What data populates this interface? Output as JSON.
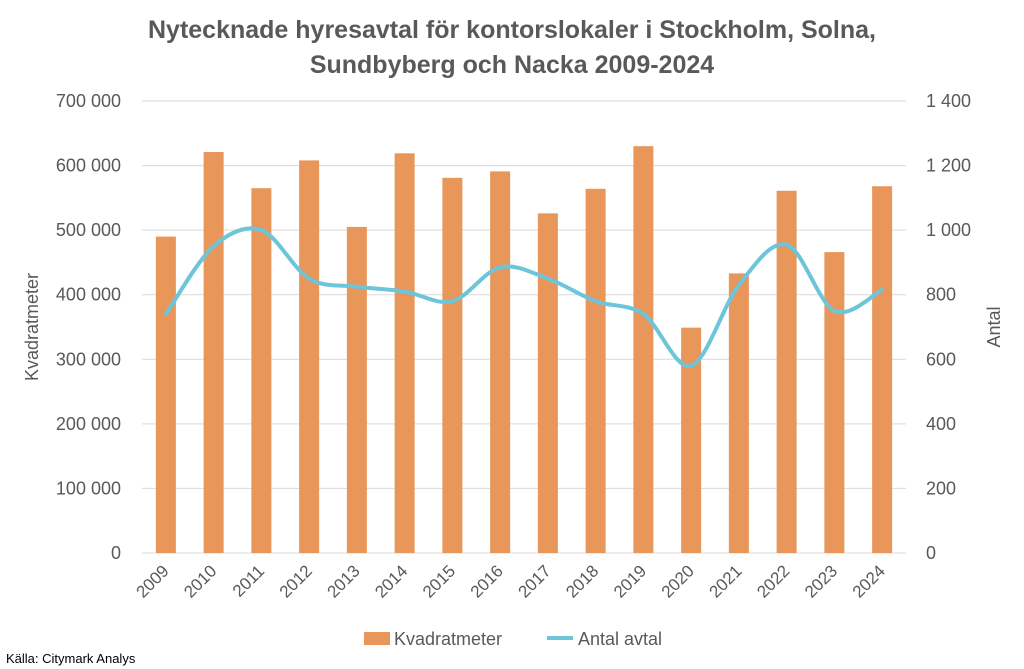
{
  "chart_data": {
    "type": "bar",
    "title_lines": [
      "Nytecknade hyresavtal för kontorslokaler i Stockholm, Solna,",
      "Sundbyberg och Nacka 2009-2024"
    ],
    "categories": [
      "2009",
      "2010",
      "2011",
      "2012",
      "2013",
      "2014",
      "2015",
      "2016",
      "2017",
      "2018",
      "2019",
      "2020",
      "2021",
      "2022",
      "2023",
      "2024"
    ],
    "series": [
      {
        "name": "Kvadratmeter",
        "type": "bar",
        "axis": "left",
        "color": "#e8965a",
        "values": [
          490000,
          621000,
          565000,
          608000,
          505000,
          619000,
          581000,
          591000,
          526000,
          564000,
          630000,
          349000,
          433000,
          561000,
          466000,
          568000
        ]
      },
      {
        "name": "Antal avtal",
        "type": "line",
        "smooth": true,
        "axis": "right",
        "color": "#6cc5d9",
        "values": [
          740,
          950,
          1000,
          850,
          825,
          810,
          780,
          885,
          850,
          780,
          740,
          580,
          830,
          955,
          750,
          815
        ]
      }
    ],
    "y_left": {
      "label": "Kvadratmeter",
      "ylim": [
        0,
        700000
      ],
      "ticks": [
        0,
        100000,
        200000,
        300000,
        400000,
        500000,
        600000,
        700000
      ],
      "tick_labels": [
        "0",
        "100 000",
        "200 000",
        "300 000",
        "400 000",
        "500 000",
        "600 000",
        "700 000"
      ]
    },
    "y_right": {
      "label": "Antal",
      "ylim": [
        0,
        1400
      ],
      "ticks": [
        0,
        200,
        400,
        600,
        800,
        1000,
        1200,
        1400
      ],
      "tick_labels": [
        "0",
        "200",
        "400",
        "600",
        "800",
        "1 000",
        "1 200",
        "1 400"
      ]
    },
    "grid": true,
    "legend_position": "bottom"
  },
  "source": "Källa: Citymark Analys"
}
